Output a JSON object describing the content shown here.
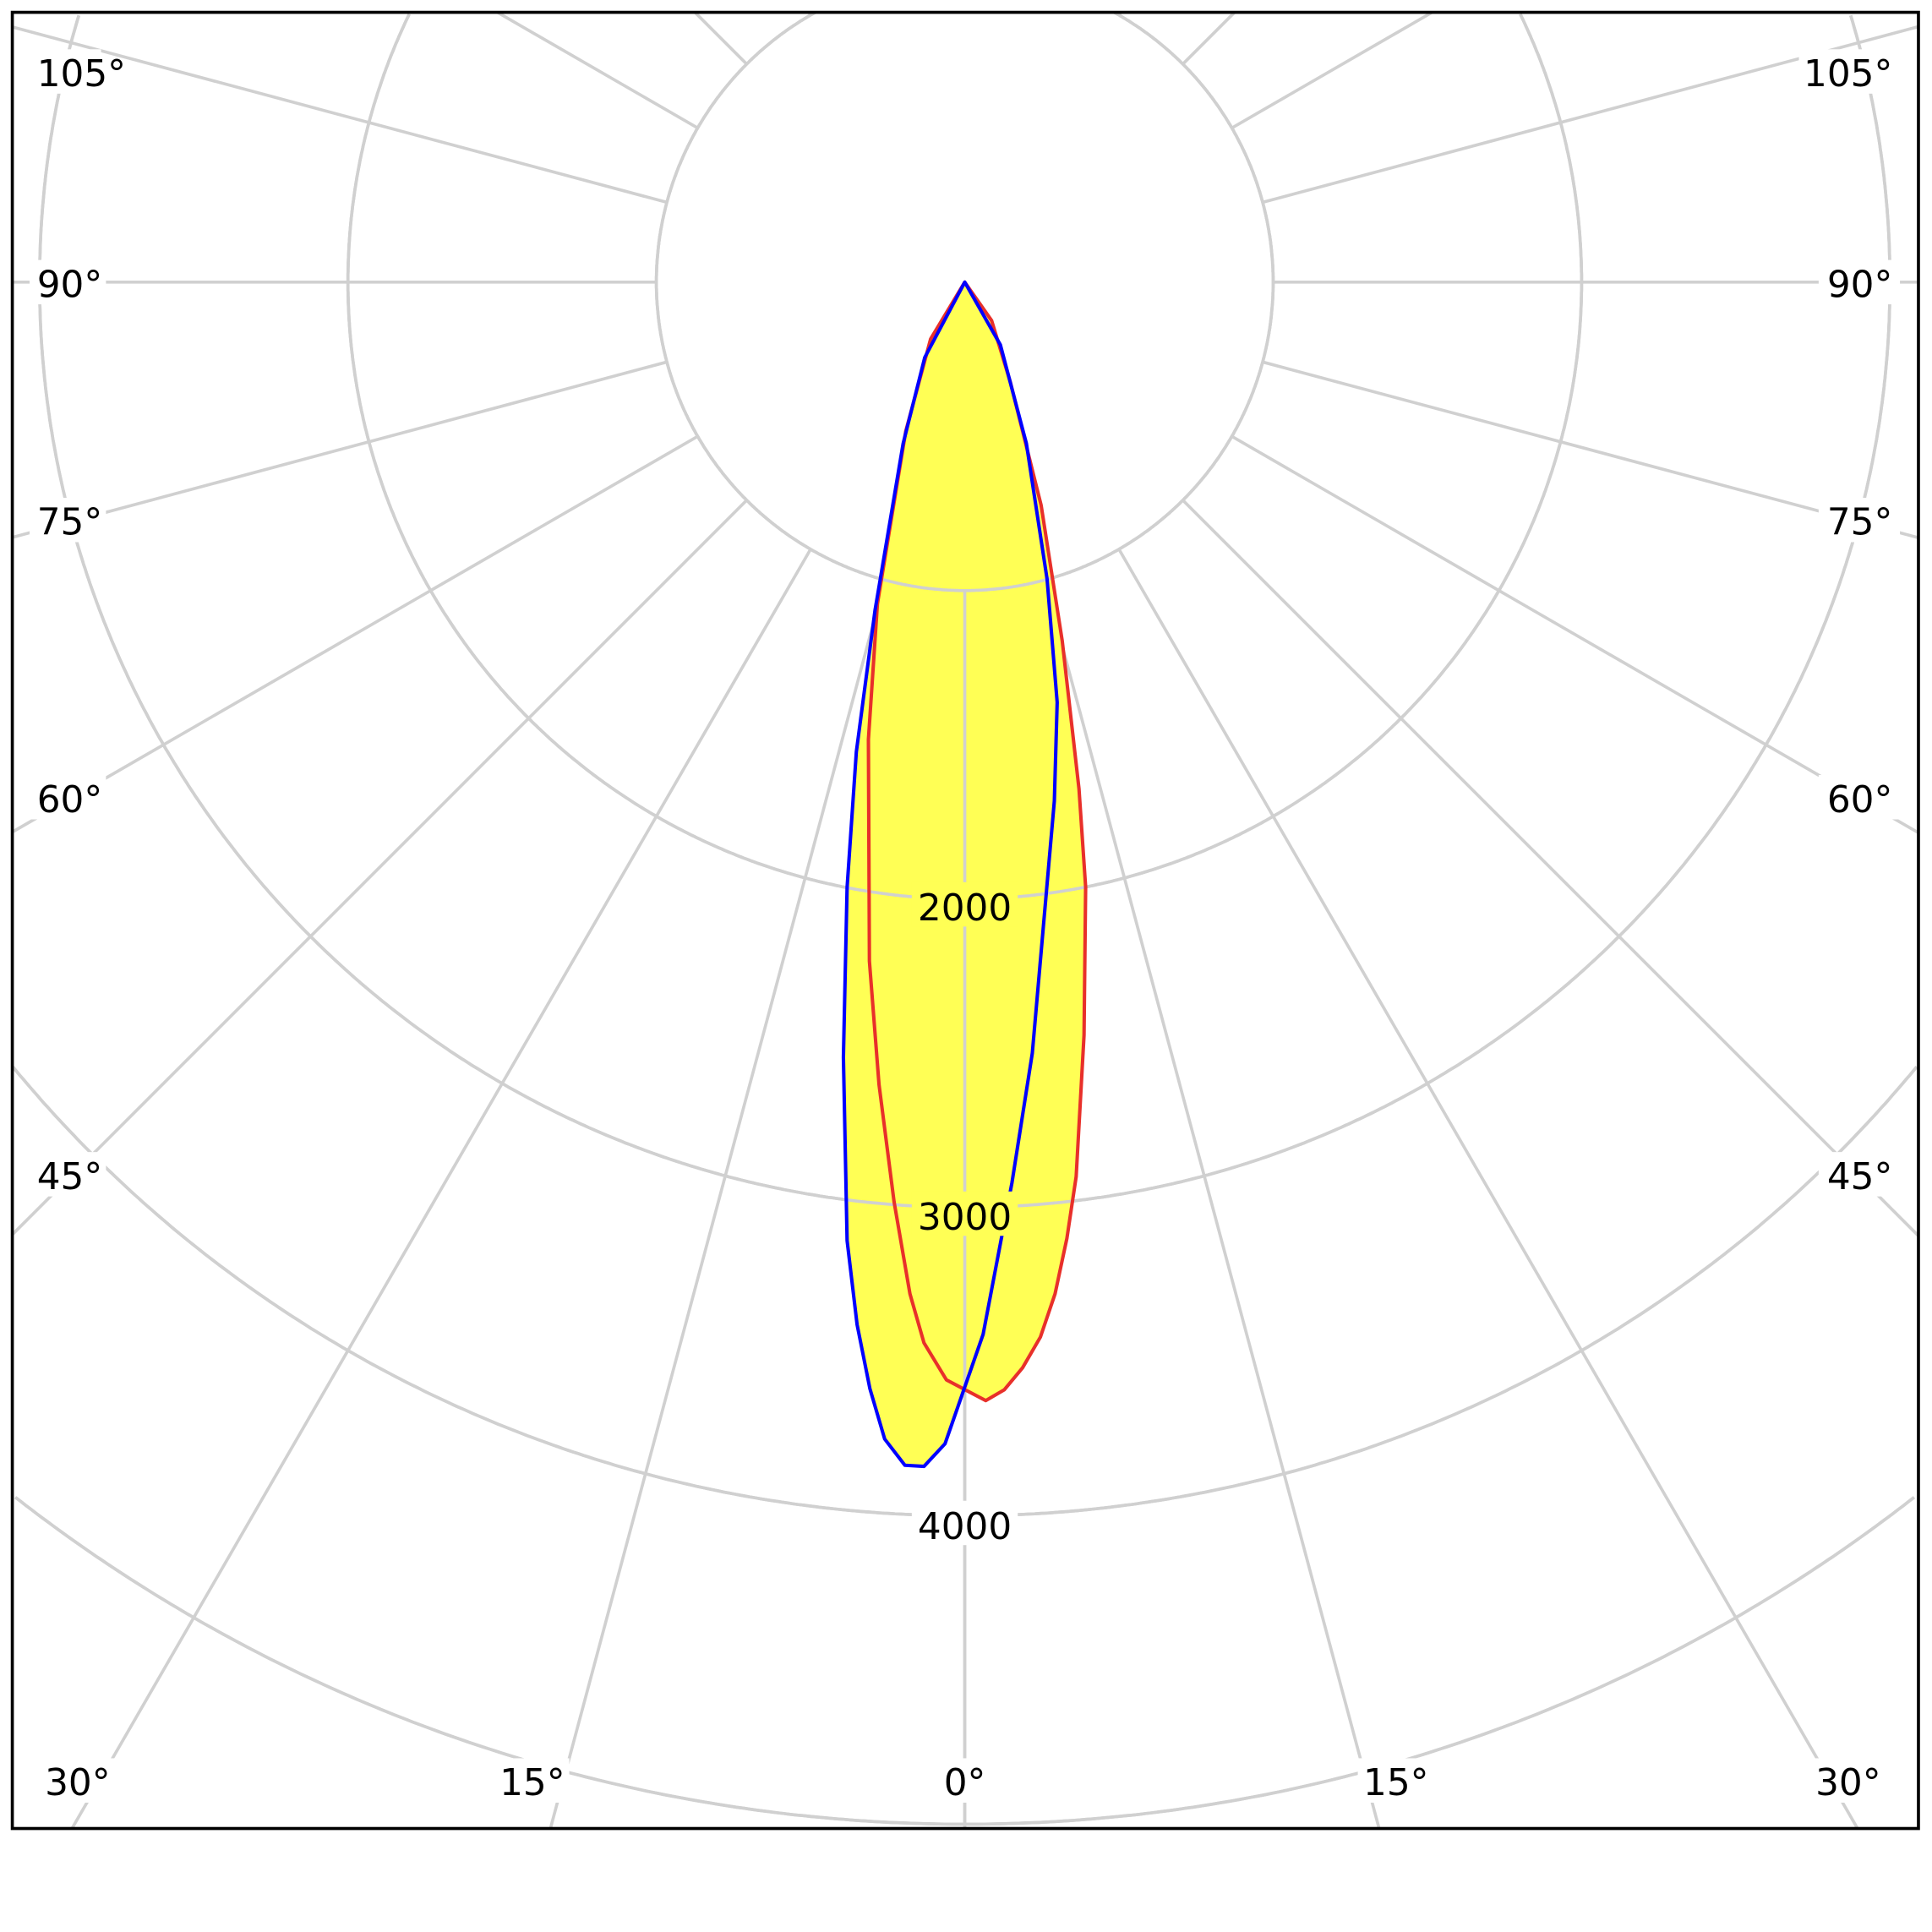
{
  "chart_data": {
    "type": "polar",
    "title": "",
    "radial_axis": {
      "ticks": [
        1000,
        2000,
        3000,
        4000,
        5000
      ],
      "tick_labels": [
        "2000",
        "3000",
        "4000"
      ],
      "labeled_values": [
        2000,
        3000,
        4000
      ],
      "range": [
        0,
        5000
      ]
    },
    "angular_axis": {
      "step_deg": 15,
      "left_labels": [
        "105°",
        "90°",
        "75°",
        "60°",
        "45°"
      ],
      "right_labels": [
        "105°",
        "90°",
        "75°",
        "60°",
        "45°"
      ],
      "bottom_labels": [
        "30°",
        "15°",
        "0°",
        "15°",
        "30°"
      ],
      "zero_direction": "down"
    },
    "grid": true,
    "fill_color": "#ffff55",
    "grid_color": "#d0d0d0",
    "series": [
      {
        "color": "#e8302a",
        "points_deg_cd": [
          [
            -35,
            0
          ],
          [
            -31,
            215
          ],
          [
            -21.6,
            520
          ],
          [
            -15.2,
            1081
          ],
          [
            -11.9,
            1515
          ],
          [
            -8,
            2223
          ],
          [
            -6.1,
            2616
          ],
          [
            -4.4,
            2990
          ],
          [
            -3.1,
            3285
          ],
          [
            -2.2,
            3442
          ],
          [
            -0.96,
            3560
          ],
          [
            1.07,
            3627
          ],
          [
            2.04,
            3594
          ],
          [
            3.05,
            3525
          ],
          [
            4.1,
            3429
          ],
          [
            5.1,
            3293
          ],
          [
            6.1,
            3118
          ],
          [
            7.1,
            2923
          ],
          [
            9,
            2472
          ],
          [
            11.3,
            2000
          ],
          [
            12.7,
            1684
          ],
          [
            15.2,
            1205
          ],
          [
            18.9,
            765
          ],
          [
            24.5,
            356
          ],
          [
            35,
            152
          ],
          [
            40,
            0
          ]
        ]
      },
      {
        "color": "#0000ff",
        "points_deg_cd": [
          [
            -35,
            0
          ],
          [
            -28,
            277
          ],
          [
            -20.9,
            560
          ],
          [
            -15.3,
            1102
          ],
          [
            -13,
            1563
          ],
          [
            -11,
            1999
          ],
          [
            -8.9,
            2544
          ],
          [
            -7,
            3131
          ],
          [
            -5.9,
            3398
          ],
          [
            -4.9,
            3601
          ],
          [
            -3.96,
            3760
          ],
          [
            -2.9,
            3841
          ],
          [
            -1.97,
            3842
          ],
          [
            -0.97,
            3767
          ],
          [
            1,
            3412
          ],
          [
            3,
            2924
          ],
          [
            5,
            2510
          ],
          [
            9.8,
            1707
          ],
          [
            12.4,
            1395
          ],
          [
            15.5,
            999
          ],
          [
            20.9,
            560
          ],
          [
            29.6,
            234
          ],
          [
            40,
            0
          ]
        ]
      }
    ]
  }
}
